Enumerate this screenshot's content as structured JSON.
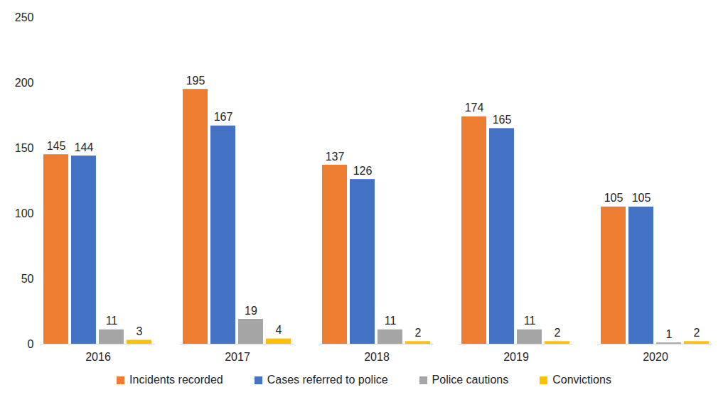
{
  "chart_data": {
    "type": "bar",
    "categories": [
      "2016",
      "2017",
      "2018",
      "2019",
      "2020"
    ],
    "series": [
      {
        "name": "Incidents recorded",
        "color": "#ed7d31",
        "values": [
          145,
          195,
          137,
          174,
          105
        ]
      },
      {
        "name": "Cases referred to police",
        "color": "#4472c4",
        "values": [
          144,
          167,
          126,
          165,
          105
        ]
      },
      {
        "name": "Police cautions",
        "color": "#a5a5a5",
        "values": [
          11,
          19,
          11,
          11,
          1
        ]
      },
      {
        "name": "Convictions",
        "color": "#ffc000",
        "values": [
          3,
          4,
          2,
          2,
          2
        ]
      }
    ],
    "ylim": [
      0,
      250
    ],
    "yticks": [
      0,
      50,
      100,
      150,
      200,
      250
    ],
    "grid": false,
    "data_labels": true,
    "legend": "bottom"
  }
}
